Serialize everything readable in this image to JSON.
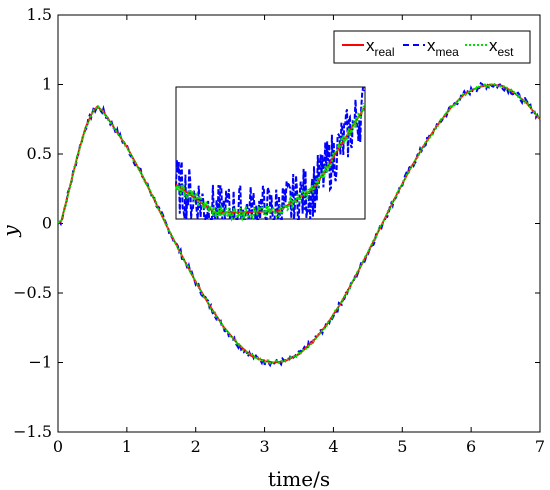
{
  "chart_data": {
    "type": "line",
    "xlabel": "time/s",
    "ylabel": "y",
    "xlim": [
      0,
      7
    ],
    "ylim": [
      -1.5,
      1.5
    ],
    "x_ticks": [
      "0",
      "1",
      "2",
      "3",
      "4",
      "5",
      "6",
      "7"
    ],
    "y_ticks": [
      "1.5",
      "1",
      "0.5",
      "0",
      "−0.5",
      "−1",
      "−1.5"
    ],
    "grid": false,
    "legend_position": "top-right",
    "colors": {
      "real": "#ff0000",
      "mea": "#0000ff",
      "est": "#00e000"
    },
    "legend": [
      {
        "key": "real",
        "main": "x",
        "sub": "real",
        "style": "solid"
      },
      {
        "key": "mea",
        "main": "x",
        "sub": "mea",
        "style": "dashed"
      },
      {
        "key": "est",
        "main": "x",
        "sub": "est",
        "style": "dotted"
      }
    ],
    "series": [
      {
        "key": "real",
        "x": [
          0,
          0.05,
          0.1,
          0.2,
          0.3,
          0.4,
          0.5,
          0.57,
          0.65,
          0.8,
          1.0,
          1.2,
          1.4,
          1.6,
          1.8,
          2.0,
          2.2,
          2.4,
          2.6,
          2.8,
          3.0,
          3.14,
          3.3,
          3.5,
          3.7,
          3.9,
          4.1,
          4.3,
          4.5,
          4.7,
          4.9,
          5.1,
          5.3,
          5.5,
          5.7,
          5.9,
          6.1,
          6.28,
          6.45,
          6.6,
          6.8,
          7.0
        ],
        "y": [
          0,
          0.02,
          0.12,
          0.32,
          0.52,
          0.69,
          0.8,
          0.84,
          0.81,
          0.7,
          0.55,
          0.37,
          0.17,
          -0.04,
          -0.23,
          -0.42,
          -0.59,
          -0.74,
          -0.86,
          -0.95,
          -0.99,
          -1.0,
          -0.99,
          -0.94,
          -0.85,
          -0.73,
          -0.58,
          -0.4,
          -0.21,
          -0.01,
          0.19,
          0.38,
          0.55,
          0.7,
          0.83,
          0.93,
          0.98,
          1.0,
          0.99,
          0.95,
          0.87,
          0.75
        ]
      }
    ],
    "inset": {
      "description_source": "zoom window",
      "xlim": [
        0.8,
        3.2
      ],
      "ylim": [
        0.3,
        0.95
      ]
    }
  }
}
